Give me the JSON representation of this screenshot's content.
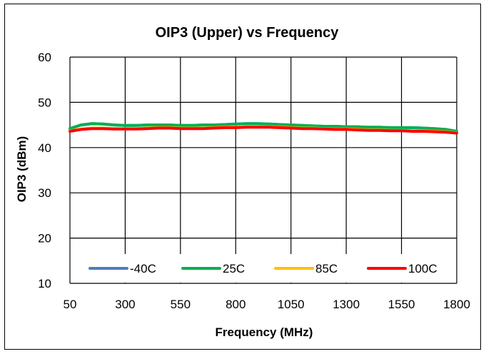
{
  "chart_data": {
    "type": "line",
    "title": "OIP3 (Upper) vs Frequency",
    "xlabel": "Frequency (MHz)",
    "ylabel": "OIP3 (dBm)",
    "xlim": [
      50,
      1800
    ],
    "ylim": [
      10,
      60
    ],
    "x_ticks": [
      "50",
      "300",
      "550",
      "800",
      "1050",
      "1300",
      "1550",
      "1800"
    ],
    "y_ticks": [
      "10",
      "20",
      "30",
      "40",
      "50",
      "60"
    ],
    "grid": true,
    "legend_position": "bottom-inside",
    "x": [
      50,
      100,
      150,
      200,
      250,
      300,
      350,
      400,
      450,
      500,
      550,
      600,
      650,
      700,
      750,
      800,
      850,
      900,
      950,
      1000,
      1050,
      1100,
      1150,
      1200,
      1250,
      1300,
      1350,
      1400,
      1450,
      1500,
      1550,
      1600,
      1650,
      1700,
      1750,
      1800
    ],
    "series": [
      {
        "name": "-40C",
        "color": "#4a7ebb",
        "values": [
          44.2,
          45.0,
          45.3,
          45.2,
          45.0,
          44.9,
          44.9,
          45.0,
          45.0,
          45.0,
          44.9,
          44.9,
          45.0,
          45.0,
          45.1,
          45.2,
          45.3,
          45.3,
          45.2,
          45.1,
          45.0,
          44.9,
          44.8,
          44.7,
          44.7,
          44.6,
          44.6,
          44.5,
          44.5,
          44.4,
          44.4,
          44.4,
          44.3,
          44.2,
          44.0,
          43.6
        ]
      },
      {
        "name": "25C",
        "color": "#00b050",
        "values": [
          44.2,
          45.0,
          45.3,
          45.2,
          45.0,
          44.9,
          44.9,
          45.0,
          45.0,
          45.0,
          44.9,
          44.9,
          45.0,
          45.0,
          45.1,
          45.2,
          45.3,
          45.3,
          45.2,
          45.1,
          45.0,
          44.9,
          44.8,
          44.7,
          44.7,
          44.6,
          44.6,
          44.5,
          44.5,
          44.4,
          44.4,
          44.4,
          44.3,
          44.2,
          44.0,
          43.6
        ]
      },
      {
        "name": "85C",
        "color": "#ffc000",
        "values": [
          43.7,
          44.1,
          44.3,
          44.3,
          44.2,
          44.2,
          44.2,
          44.3,
          44.4,
          44.4,
          44.3,
          44.3,
          44.3,
          44.4,
          44.5,
          44.5,
          44.6,
          44.6,
          44.6,
          44.5,
          44.4,
          44.3,
          44.3,
          44.2,
          44.1,
          44.1,
          44.0,
          43.9,
          43.9,
          43.8,
          43.8,
          43.7,
          43.7,
          43.6,
          43.5,
          43.3
        ]
      },
      {
        "name": "100C",
        "color": "#ff0000",
        "values": [
          43.6,
          44.0,
          44.2,
          44.2,
          44.1,
          44.1,
          44.1,
          44.2,
          44.3,
          44.3,
          44.2,
          44.2,
          44.2,
          44.3,
          44.4,
          44.4,
          44.5,
          44.5,
          44.5,
          44.4,
          44.3,
          44.2,
          44.2,
          44.1,
          44.0,
          44.0,
          43.9,
          43.8,
          43.8,
          43.7,
          43.7,
          43.6,
          43.6,
          43.5,
          43.4,
          43.2
        ]
      }
    ]
  }
}
